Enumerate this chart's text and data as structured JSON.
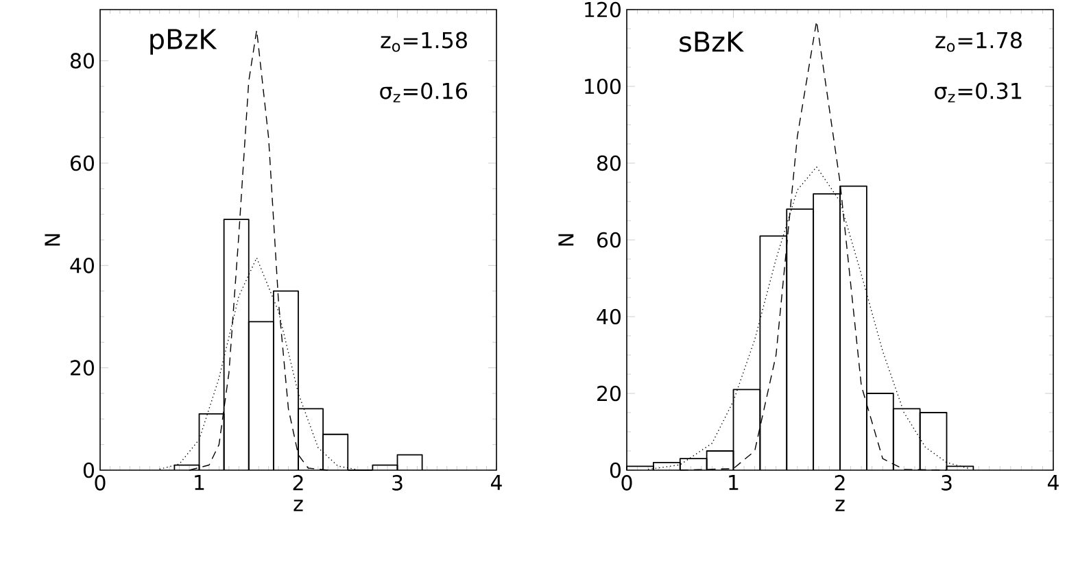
{
  "chart_data": [
    {
      "type": "histogram",
      "xlabel": "z",
      "ylabel": "N",
      "color": "#000000",
      "bins": [
        0.75,
        1.0,
        1.25,
        1.5,
        1.75,
        2.0,
        2.25,
        2.5,
        2.75,
        3.0,
        3.25
      ],
      "values": [
        1,
        11,
        49,
        29,
        35,
        12,
        7,
        0,
        1,
        3
      ],
      "series": [
        {
          "type": "line",
          "line_style": "dashed",
          "color": "#000000",
          "x": [
            0.9,
            1.1,
            1.2,
            1.3,
            1.4,
            1.5,
            1.58,
            1.7,
            1.8,
            1.9,
            2.0,
            2.1,
            2.3
          ],
          "values": [
            0,
            1,
            5,
            19,
            46,
            76,
            86,
            65,
            33,
            12,
            3,
            0.4,
            0
          ]
        },
        {
          "type": "line",
          "line_style": "dotted",
          "color": "#000000",
          "x": [
            0.6,
            0.8,
            1.0,
            1.2,
            1.4,
            1.58,
            1.8,
            2.0,
            2.2,
            2.4,
            2.6
          ],
          "values": [
            0.2,
            1.2,
            6,
            18,
            34,
            41.5,
            31,
            15,
            4.4,
            0.8,
            0.1
          ]
        }
      ],
      "annotations": [
        "pBzK",
        "z$_{o}$=1.58",
        "σ$_{z}$=0.16"
      ],
      "xlim": [
        0,
        4
      ],
      "xticks": [
        0,
        1,
        2,
        3,
        4
      ],
      "ylim": [
        0,
        90
      ],
      "yticks": [
        0,
        20,
        40,
        60,
        80
      ]
    },
    {
      "type": "histogram",
      "xlabel": "z",
      "ylabel": "N",
      "color": "#000000",
      "bins": [
        0.0,
        0.25,
        0.5,
        0.75,
        1.0,
        1.25,
        1.5,
        1.75,
        2.0,
        2.25,
        2.5,
        2.75,
        3.0,
        3.25
      ],
      "values": [
        1,
        2,
        3,
        5,
        21,
        61,
        68,
        72,
        74,
        20,
        16,
        15,
        1
      ],
      "series": [
        {
          "type": "line",
          "line_style": "dashed",
          "color": "#000000",
          "x": [
            0.5,
            1.0,
            1.2,
            1.4,
            1.6,
            1.78,
            2.0,
            2.2,
            2.4,
            2.6,
            3.0
          ],
          "values": [
            0,
            0.4,
            5,
            30,
            87,
            117,
            75,
            22,
            3,
            0.2,
            0
          ]
        },
        {
          "type": "line",
          "line_style": "dotted",
          "color": "#000000",
          "x": [
            0.2,
            0.5,
            0.8,
            1.0,
            1.2,
            1.4,
            1.6,
            1.78,
            2.0,
            2.2,
            2.4,
            2.6,
            2.8,
            3.0,
            3.2
          ],
          "values": [
            0.2,
            1.4,
            7,
            18,
            34,
            55,
            73,
            79,
            70,
            51,
            31,
            15,
            6,
            2,
            0.5
          ]
        }
      ],
      "annotations": [
        "sBzK",
        "z$_{o}$=1.78",
        "σ$_{z}$=0.31"
      ],
      "xlim": [
        0,
        4
      ],
      "xticks": [
        0,
        1,
        2,
        3,
        4
      ],
      "ylim": [
        0,
        120
      ],
      "yticks": [
        0,
        20,
        40,
        60,
        80,
        100,
        120
      ]
    }
  ]
}
